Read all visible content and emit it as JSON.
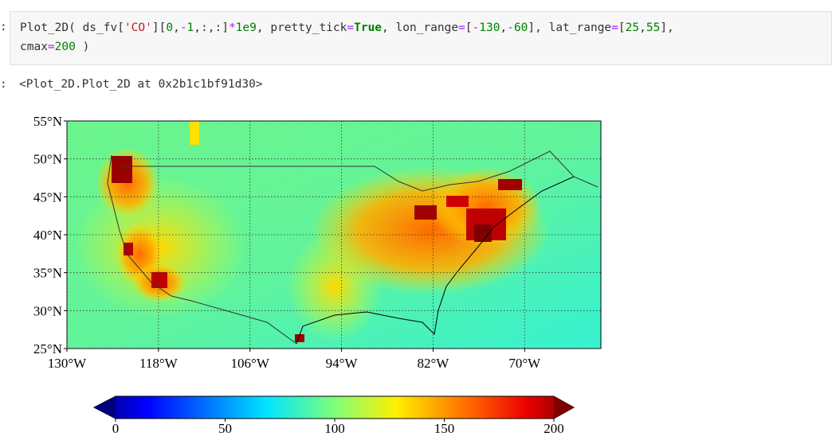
{
  "in_prompt": ":",
  "code": {
    "lines": [
      [
        {
          "text": "Plot_2D( ds_fv["
        },
        {
          "text": "'CO'",
          "color": "#ba2121"
        },
        {
          "text": "]["
        },
        {
          "text": "0",
          "color": "#008000"
        },
        {
          "text": ","
        },
        {
          "text": "-",
          "color": "#aa22ff"
        },
        {
          "text": "1",
          "color": "#008000"
        },
        {
          "text": ",:,:]"
        },
        {
          "text": "*",
          "color": "#aa22ff"
        },
        {
          "text": "1e9",
          "color": "#008000"
        },
        {
          "text": ", pretty_tick"
        },
        {
          "text": "=",
          "color": "#aa22ff"
        },
        {
          "text": "True",
          "color": "#008000",
          "bold": true
        },
        {
          "text": ", lon_range"
        },
        {
          "text": "=",
          "color": "#aa22ff"
        },
        {
          "text": "["
        },
        {
          "text": "-",
          "color": "#aa22ff"
        },
        {
          "text": "130",
          "color": "#008000"
        },
        {
          "text": ","
        },
        {
          "text": "-",
          "color": "#aa22ff"
        },
        {
          "text": "60",
          "color": "#008000"
        },
        {
          "text": "], lat_range"
        },
        {
          "text": "=",
          "color": "#aa22ff"
        },
        {
          "text": "["
        },
        {
          "text": "25",
          "color": "#008000"
        },
        {
          "text": ","
        },
        {
          "text": "55",
          "color": "#008000"
        },
        {
          "text": "],"
        }
      ],
      [
        {
          "text": "cmax"
        },
        {
          "text": "=",
          "color": "#aa22ff"
        },
        {
          "text": "200",
          "color": "#008000"
        },
        {
          "text": " )"
        }
      ]
    ]
  },
  "out_prompt": ":",
  "output_text": "<Plot_2D.Plot_2D at 0x2b1c1bf91d30>",
  "map": {
    "lonlim": [
      -130,
      -60
    ],
    "latlim": [
      25,
      55
    ],
    "grid": true,
    "lat_ticks": [
      {
        "value": 55,
        "label": "55°N"
      },
      {
        "value": 50,
        "label": "50°N"
      },
      {
        "value": 45,
        "label": "45°N"
      },
      {
        "value": 40,
        "label": "40°N"
      },
      {
        "value": 35,
        "label": "35°N"
      },
      {
        "value": 30,
        "label": "30°N"
      },
      {
        "value": 25,
        "label": "25°N"
      }
    ],
    "lon_ticks": [
      {
        "value": -130,
        "label": "130°W"
      },
      {
        "value": -118,
        "label": "118°W"
      },
      {
        "value": -106,
        "label": "106°W"
      },
      {
        "value": -94,
        "label": "94°W"
      },
      {
        "value": -82,
        "label": "82°W"
      },
      {
        "value": -70,
        "label": "70°W"
      }
    ]
  },
  "colorbar": {
    "clim": [
      0,
      200
    ],
    "ticks": [
      0,
      50,
      100,
      150,
      200
    ]
  }
}
